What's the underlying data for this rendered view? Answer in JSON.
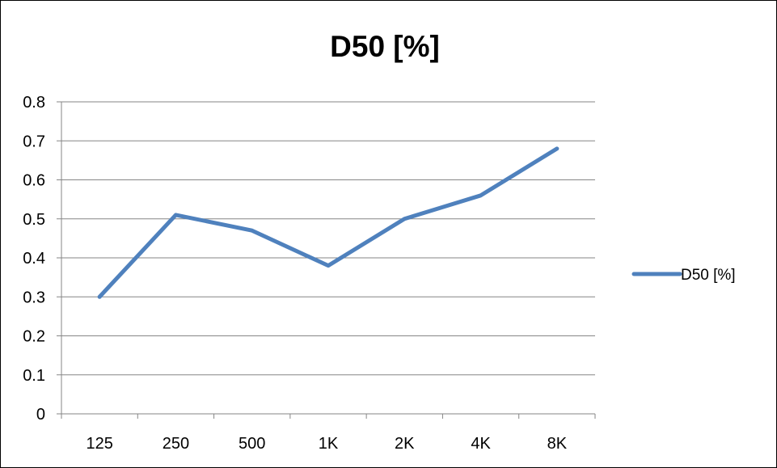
{
  "chart_data": {
    "type": "line",
    "title": "D50 [%]",
    "xlabel": "",
    "ylabel": "",
    "categories": [
      "125",
      "250",
      "500",
      "1K",
      "2K",
      "4K",
      "8K"
    ],
    "series": [
      {
        "name": "D50 [%]",
        "values": [
          0.3,
          0.51,
          0.47,
          0.38,
          0.5,
          0.56,
          0.68
        ],
        "color": "#4F81BD"
      }
    ],
    "ylim": [
      0,
      0.8
    ],
    "yticks": [
      "0",
      "0.1",
      "0.2",
      "0.3",
      "0.4",
      "0.5",
      "0.6",
      "0.7",
      "0.8"
    ],
    "grid": true,
    "legend_position": "right"
  }
}
